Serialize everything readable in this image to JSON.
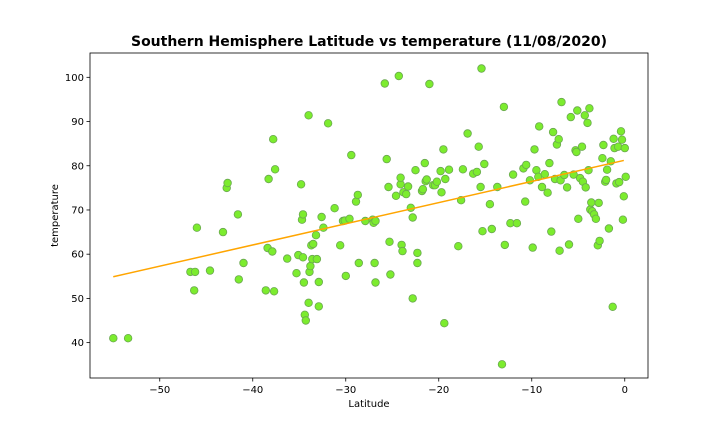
{
  "chart_data": {
    "type": "scatter",
    "title": "Southern Hemisphere Latitude vs temperature (11/08/2020)",
    "xlabel": "Latitude",
    "ylabel": "temperature",
    "xlim": [
      -57.5,
      2.5
    ],
    "ylim": [
      32,
      105.5
    ],
    "xticks": [
      -50,
      -40,
      -30,
      -20,
      -10,
      0
    ],
    "xtick_labels": [
      "−50",
      "−40",
      "−30",
      "−20",
      "−10",
      "0"
    ],
    "yticks": [
      40,
      50,
      60,
      70,
      80,
      90,
      100
    ],
    "ytick_labels": [
      "40",
      "50",
      "60",
      "70",
      "80",
      "90",
      "100"
    ],
    "grid": false,
    "colors": {
      "marker_fill": "#7cec2e",
      "marker_edge": "#6aa84f",
      "regression_line": "#ffa500"
    },
    "regression": {
      "x": [
        -55.0,
        -0.1
      ],
      "y": [
        54.9,
        81.2
      ]
    },
    "points": [
      [
        -55.0,
        41.0
      ],
      [
        -53.4,
        41.0
      ],
      [
        -46.7,
        56.0
      ],
      [
        -46.3,
        51.8
      ],
      [
        -46.2,
        56.0
      ],
      [
        -46.0,
        66.0
      ],
      [
        -44.6,
        56.3
      ],
      [
        -43.2,
        65.0
      ],
      [
        -42.8,
        75.0
      ],
      [
        -42.7,
        76.1
      ],
      [
        -41.6,
        69.0
      ],
      [
        -41.5,
        54.3
      ],
      [
        -41.0,
        58.0
      ],
      [
        -38.6,
        51.8
      ],
      [
        -38.4,
        61.4
      ],
      [
        -38.3,
        77.0
      ],
      [
        -37.9,
        60.6
      ],
      [
        -37.8,
        86.0
      ],
      [
        -37.7,
        51.6
      ],
      [
        -37.6,
        79.2
      ],
      [
        -36.3,
        59.0
      ],
      [
        -35.3,
        55.7
      ],
      [
        -35.1,
        59.8
      ],
      [
        -34.8,
        75.8
      ],
      [
        -34.7,
        67.8
      ],
      [
        -34.6,
        69.0
      ],
      [
        -34.6,
        59.3
      ],
      [
        -34.5,
        53.6
      ],
      [
        -34.4,
        46.3
      ],
      [
        -34.3,
        45.0
      ],
      [
        -34.0,
        91.4
      ],
      [
        -34.0,
        49.0
      ],
      [
        -33.9,
        56.0
      ],
      [
        -33.8,
        57.3
      ],
      [
        -33.7,
        62.0
      ],
      [
        -33.6,
        58.9
      ],
      [
        -33.5,
        62.3
      ],
      [
        -33.2,
        64.3
      ],
      [
        -33.1,
        58.9
      ],
      [
        -32.9,
        53.7
      ],
      [
        -32.9,
        48.2
      ],
      [
        -32.6,
        68.4
      ],
      [
        -32.4,
        66.0
      ],
      [
        -31.9,
        89.6
      ],
      [
        -31.2,
        70.4
      ],
      [
        -30.6,
        62.0
      ],
      [
        -30.3,
        67.5
      ],
      [
        -30.1,
        67.6
      ],
      [
        -30.0,
        55.1
      ],
      [
        -29.6,
        68.0
      ],
      [
        -29.4,
        82.4
      ],
      [
        -28.9,
        71.9
      ],
      [
        -28.7,
        73.4
      ],
      [
        -28.6,
        58.0
      ],
      [
        -27.9,
        67.5
      ],
      [
        -27.1,
        67.8
      ],
      [
        -27.0,
        67.1
      ],
      [
        -26.9,
        58.0
      ],
      [
        -26.8,
        53.6
      ],
      [
        -26.8,
        67.5
      ],
      [
        -25.8,
        98.6
      ],
      [
        -25.6,
        81.5
      ],
      [
        -25.4,
        75.2
      ],
      [
        -25.3,
        62.8
      ],
      [
        -25.2,
        55.4
      ],
      [
        -24.6,
        73.2
      ],
      [
        -24.3,
        100.3
      ],
      [
        -24.1,
        75.8
      ],
      [
        -24.1,
        77.3
      ],
      [
        -24.0,
        62.1
      ],
      [
        -23.9,
        60.7
      ],
      [
        -23.8,
        74.0
      ],
      [
        -23.5,
        73.6
      ],
      [
        -23.3,
        75.3
      ],
      [
        -23.0,
        70.5
      ],
      [
        -22.8,
        68.3
      ],
      [
        -22.8,
        50.0
      ],
      [
        -22.5,
        79.0
      ],
      [
        -22.3,
        58.0
      ],
      [
        -22.3,
        60.3
      ],
      [
        -21.8,
        74.3
      ],
      [
        -21.7,
        74.7
      ],
      [
        -21.5,
        80.6
      ],
      [
        -21.4,
        76.5
      ],
      [
        -21.3,
        76.9
      ],
      [
        -21.0,
        98.5
      ],
      [
        -20.6,
        75.6
      ],
      [
        -20.4,
        75.6
      ],
      [
        -20.2,
        76.4
      ],
      [
        -19.8,
        78.8
      ],
      [
        -19.7,
        74.0
      ],
      [
        -19.5,
        83.7
      ],
      [
        -19.4,
        44.4
      ],
      [
        -19.3,
        77.0
      ],
      [
        -18.9,
        79.1
      ],
      [
        -17.9,
        61.8
      ],
      [
        -17.6,
        72.2
      ],
      [
        -17.4,
        79.2
      ],
      [
        -16.9,
        87.3
      ],
      [
        -16.3,
        78.2
      ],
      [
        -15.9,
        78.6
      ],
      [
        -15.7,
        84.3
      ],
      [
        -15.5,
        75.2
      ],
      [
        -15.4,
        102.0
      ],
      [
        -15.3,
        65.2
      ],
      [
        -15.1,
        80.4
      ],
      [
        -14.5,
        71.3
      ],
      [
        -14.3,
        65.7
      ],
      [
        -13.7,
        75.2
      ],
      [
        -13.2,
        35.1
      ],
      [
        -13.0,
        93.3
      ],
      [
        -12.9,
        62.1
      ],
      [
        -12.3,
        67.0
      ],
      [
        -12.0,
        78.0
      ],
      [
        -11.6,
        67.0
      ],
      [
        -10.9,
        79.4
      ],
      [
        -10.7,
        71.9
      ],
      [
        -10.6,
        80.2
      ],
      [
        -10.2,
        76.7
      ],
      [
        -9.9,
        61.5
      ],
      [
        -9.7,
        83.7
      ],
      [
        -9.5,
        79.0
      ],
      [
        -9.3,
        77.5
      ],
      [
        -9.2,
        88.9
      ],
      [
        -8.9,
        75.2
      ],
      [
        -8.6,
        78.1
      ],
      [
        -8.3,
        73.9
      ],
      [
        -8.1,
        80.6
      ],
      [
        -7.9,
        65.1
      ],
      [
        -7.7,
        87.6
      ],
      [
        -7.5,
        77.0
      ],
      [
        -7.3,
        84.8
      ],
      [
        -7.1,
        86.0
      ],
      [
        -7.0,
        60.8
      ],
      [
        -6.9,
        76.7
      ],
      [
        -6.8,
        94.4
      ],
      [
        -6.5,
        77.9
      ],
      [
        -6.2,
        75.1
      ],
      [
        -6.0,
        62.2
      ],
      [
        -5.8,
        91.0
      ],
      [
        -5.5,
        78.0
      ],
      [
        -5.3,
        83.5
      ],
      [
        -5.2,
        83.1
      ],
      [
        -5.1,
        92.5
      ],
      [
        -5.0,
        68.0
      ],
      [
        -4.8,
        77.2
      ],
      [
        -4.6,
        84.3
      ],
      [
        -4.5,
        76.4
      ],
      [
        -4.3,
        91.4
      ],
      [
        -4.2,
        75.1
      ],
      [
        -4.0,
        89.7
      ],
      [
        -3.9,
        79.0
      ],
      [
        -3.8,
        93.0
      ],
      [
        -3.7,
        70.1
      ],
      [
        -3.6,
        71.7
      ],
      [
        -3.5,
        69.7
      ],
      [
        -3.3,
        69.0
      ],
      [
        -3.1,
        68.0
      ],
      [
        -2.9,
        62.0
      ],
      [
        -2.8,
        71.6
      ],
      [
        -2.7,
        63.0
      ],
      [
        -2.4,
        81.7
      ],
      [
        -2.3,
        84.7
      ],
      [
        -2.1,
        76.4
      ],
      [
        -2.0,
        76.8
      ],
      [
        -1.9,
        79.1
      ],
      [
        -1.7,
        65.8
      ],
      [
        -1.5,
        81.0
      ],
      [
        -1.3,
        48.1
      ],
      [
        -1.2,
        86.1
      ],
      [
        -1.1,
        84.0
      ],
      [
        -0.9,
        76.0
      ],
      [
        -0.7,
        84.3
      ],
      [
        -0.6,
        76.3
      ],
      [
        -0.4,
        87.8
      ],
      [
        -0.3,
        85.9
      ],
      [
        -0.2,
        67.8
      ],
      [
        -0.1,
        73.1
      ],
      [
        0.0,
        84.0
      ],
      [
        0.1,
        77.5
      ]
    ]
  }
}
